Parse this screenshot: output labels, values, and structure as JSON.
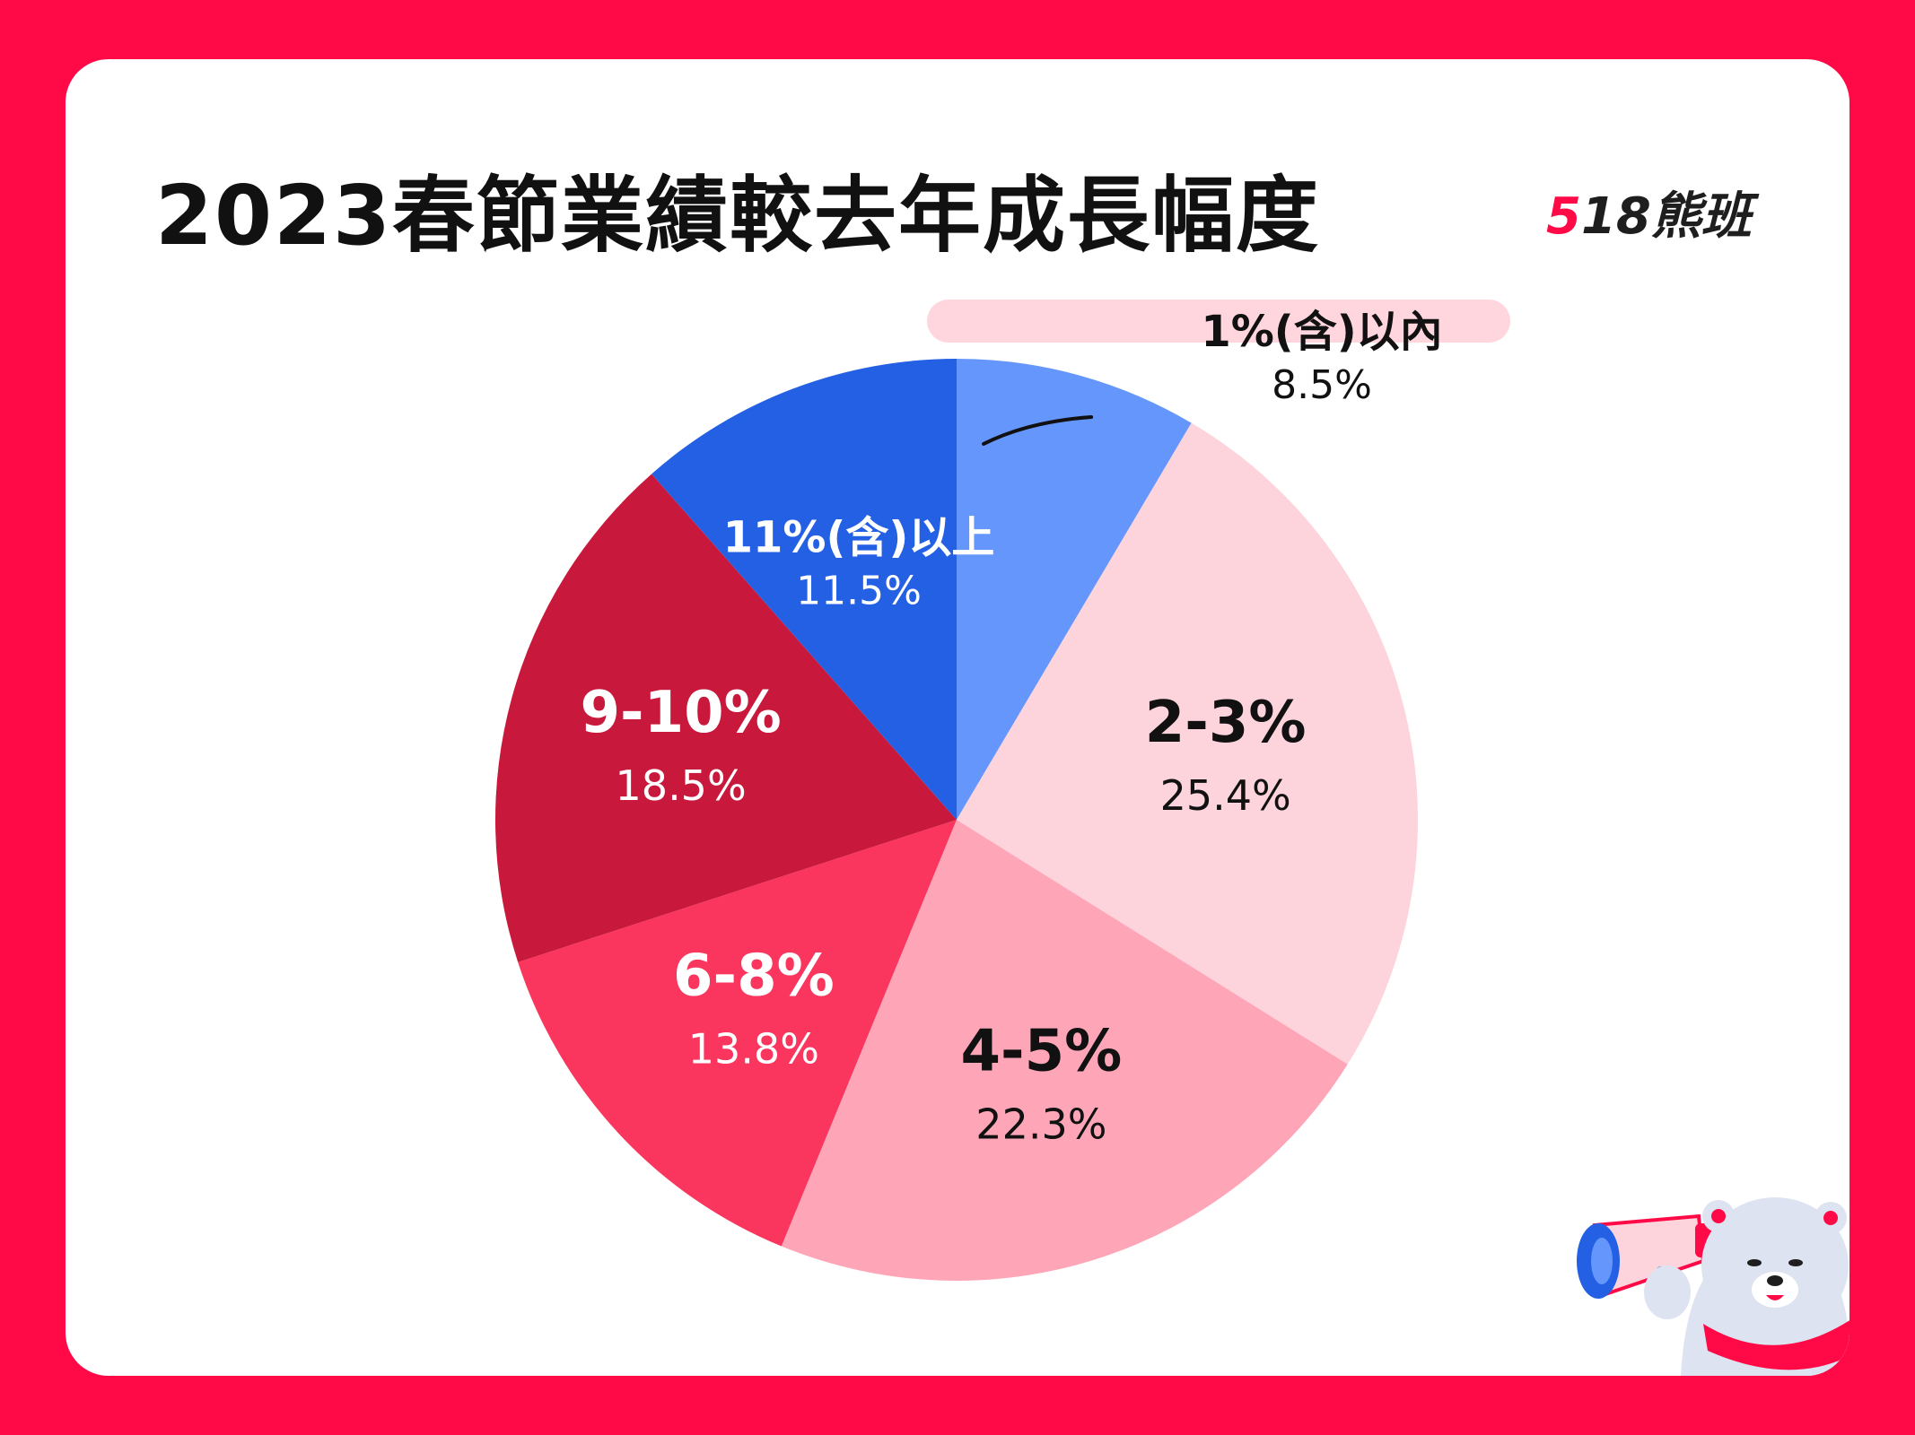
{
  "title": "2023春節業績較去年成長幅度",
  "brand": {
    "num_first": "5",
    "num_rest": "18",
    "name": "熊班"
  },
  "colors": {
    "background": "#FF0A47",
    "card": "#FFFFFF",
    "title_highlight": "#FFD6DE"
  },
  "chart_data": {
    "type": "pie",
    "title": "2023春節業績較去年成長幅度",
    "start_angle_deg": 0,
    "direction": "clockwise",
    "legend": "none",
    "slices": [
      {
        "label": "1%(含)以內",
        "value": 8.5,
        "value_text": "8.5%",
        "color": "#6596FB",
        "text_color": "#111111"
      },
      {
        "label": "2-3%",
        "value": 25.4,
        "value_text": "25.4%",
        "color": "#FDD3DC",
        "text_color": "#111111"
      },
      {
        "label": "4-5%",
        "value": 22.3,
        "value_text": "22.3%",
        "color": "#FEA6B7",
        "text_color": "#111111"
      },
      {
        "label": "6-8%",
        "value": 13.8,
        "value_text": "13.8%",
        "color": "#FA365F",
        "text_color": "#FFFFFF"
      },
      {
        "label": "9-10%",
        "value": 18.5,
        "value_text": "18.5%",
        "color": "#C8183C",
        "text_color": "#FFFFFF"
      },
      {
        "label": "11%(含)以上",
        "value": 11.5,
        "value_text": "11.5%",
        "color": "#2360E3",
        "text_color": "#FFFFFF"
      }
    ]
  }
}
